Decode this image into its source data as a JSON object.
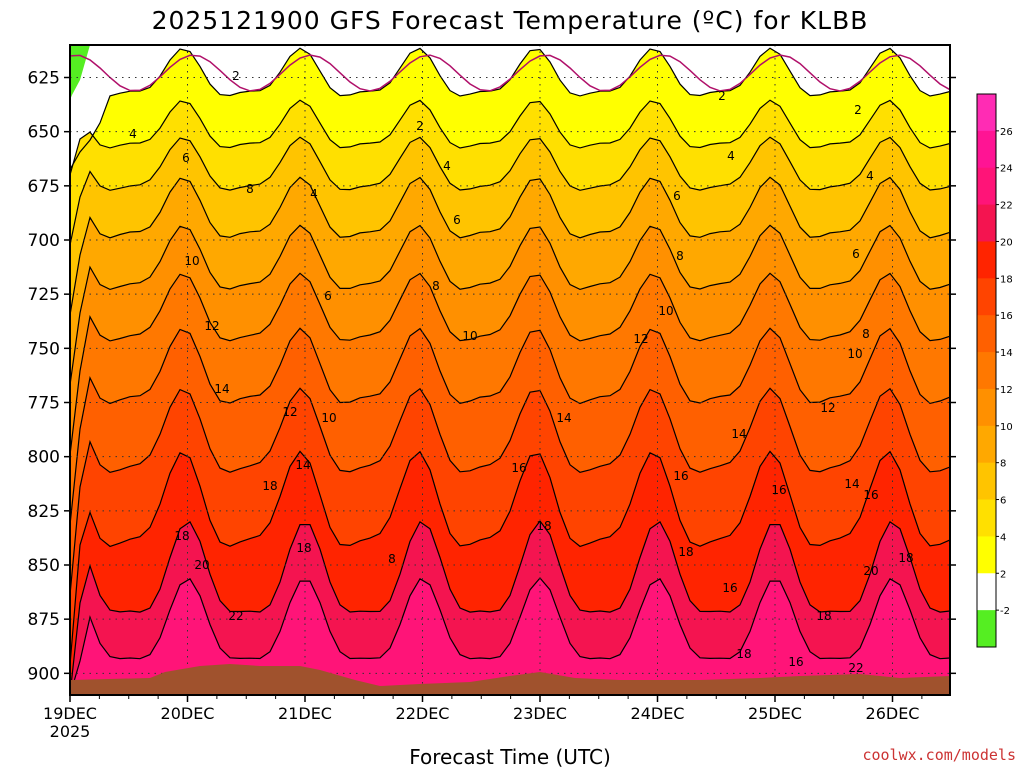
{
  "chart_data": {
    "type": "heatmap",
    "title": "2025121900 GFS Forecast Temperature (ºC) for KLBB",
    "xlabel": "Forecast Time (UTC)",
    "ylabel": "",
    "x_ticks": [
      "19DEC",
      "20DEC",
      "21DEC",
      "22DEC",
      "23DEC",
      "24DEC",
      "25DEC",
      "26DEC"
    ],
    "x_year": "2025",
    "y_ticks": [
      625,
      650,
      675,
      700,
      725,
      750,
      775,
      800,
      825,
      850,
      875,
      900
    ],
    "ylim": [
      610,
      910
    ],
    "y_axis_inverted": true,
    "grid": true,
    "colorbar": {
      "labels": [
        "-2",
        "2",
        "4",
        "6",
        "8",
        "10",
        "12",
        "14",
        "16",
        "18",
        "20",
        "22",
        "24",
        "26"
      ],
      "levels": [
        -2,
        2,
        4,
        6,
        8,
        10,
        12,
        14,
        16,
        18,
        20,
        22,
        24,
        26
      ],
      "colors": [
        "#55ee22",
        "#ffffff",
        "#ffff00",
        "#ffe000",
        "#ffc400",
        "#ffa800",
        "#ff9000",
        "#ff7800",
        "#ff6000",
        "#ff4400",
        "#ff2400",
        "#f41450",
        "#ff1478",
        "#ff1494",
        "#ff2cb4"
      ]
    },
    "contour_labels": [
      {
        "value": "2"
      },
      {
        "value": "2"
      },
      {
        "value": "2"
      },
      {
        "value": "2"
      },
      {
        "value": "4"
      },
      {
        "value": "4"
      },
      {
        "value": "4"
      },
      {
        "value": "4"
      },
      {
        "value": "4"
      },
      {
        "value": "6"
      },
      {
        "value": "6"
      },
      {
        "value": "6"
      },
      {
        "value": "6"
      },
      {
        "value": "6"
      },
      {
        "value": "8"
      },
      {
        "value": "8"
      },
      {
        "value": "8"
      },
      {
        "value": "8"
      },
      {
        "value": "8"
      },
      {
        "value": "10"
      },
      {
        "value": "10"
      },
      {
        "value": "10"
      },
      {
        "value": "10"
      },
      {
        "value": "10"
      },
      {
        "value": "12"
      },
      {
        "value": "12"
      },
      {
        "value": "12"
      },
      {
        "value": "12"
      },
      {
        "value": "14"
      },
      {
        "value": "14"
      },
      {
        "value": "14"
      },
      {
        "value": "14"
      },
      {
        "value": "14"
      },
      {
        "value": "16"
      },
      {
        "value": "16"
      },
      {
        "value": "16"
      },
      {
        "value": "16"
      },
      {
        "value": "16"
      },
      {
        "value": "16"
      },
      {
        "value": "18"
      },
      {
        "value": "18"
      },
      {
        "value": "18"
      },
      {
        "value": "18"
      },
      {
        "value": "18"
      },
      {
        "value": "18"
      },
      {
        "value": "18"
      },
      {
        "value": "18"
      },
      {
        "value": "20"
      },
      {
        "value": "20"
      },
      {
        "value": "22"
      },
      {
        "value": "22"
      }
    ],
    "terrain_color": "#a0522d"
  },
  "credit": "coolwx.com/models"
}
